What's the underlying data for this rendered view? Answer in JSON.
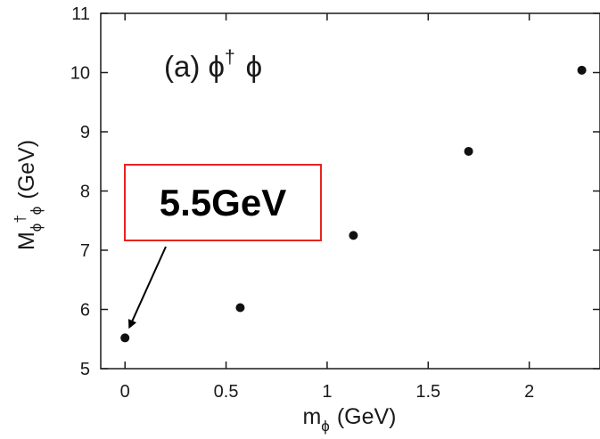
{
  "chart_data": {
    "type": "scatter",
    "x": [
      0,
      0.57,
      1.13,
      1.7,
      2.26
    ],
    "y": [
      5.52,
      6.03,
      7.25,
      8.67,
      10.04
    ],
    "xlim": [
      -0.12,
      2.35
    ],
    "ylim": [
      5,
      11
    ],
    "xticks": [
      0,
      0.5,
      1,
      1.5,
      2
    ],
    "xtick_labels": [
      "0",
      "0.5",
      "1",
      "1.5",
      "2"
    ],
    "yticks": [
      5,
      6,
      7,
      8,
      9,
      10,
      11
    ],
    "ytick_labels": [
      "5",
      "6",
      "7",
      "8",
      "9",
      "10",
      "11"
    ],
    "xlabel": {
      "main": "m",
      "sub": "ϕ",
      "unit": "(GeV)"
    },
    "ylabel": {
      "main": "M",
      "sub1": "ϕ",
      "sup": "†",
      "sub2": "ϕ",
      "unit": "(GeV)"
    },
    "panel_annotation": {
      "prefix": "(a) ϕ",
      "sup": "†",
      "suffix": "ϕ"
    },
    "callout": {
      "text": "5.5GeV",
      "box_color": "#e8231f",
      "points_to": {
        "x": 0,
        "y": 5.52
      }
    },
    "marker_color": "#111111",
    "grid": false,
    "legend": "none"
  }
}
